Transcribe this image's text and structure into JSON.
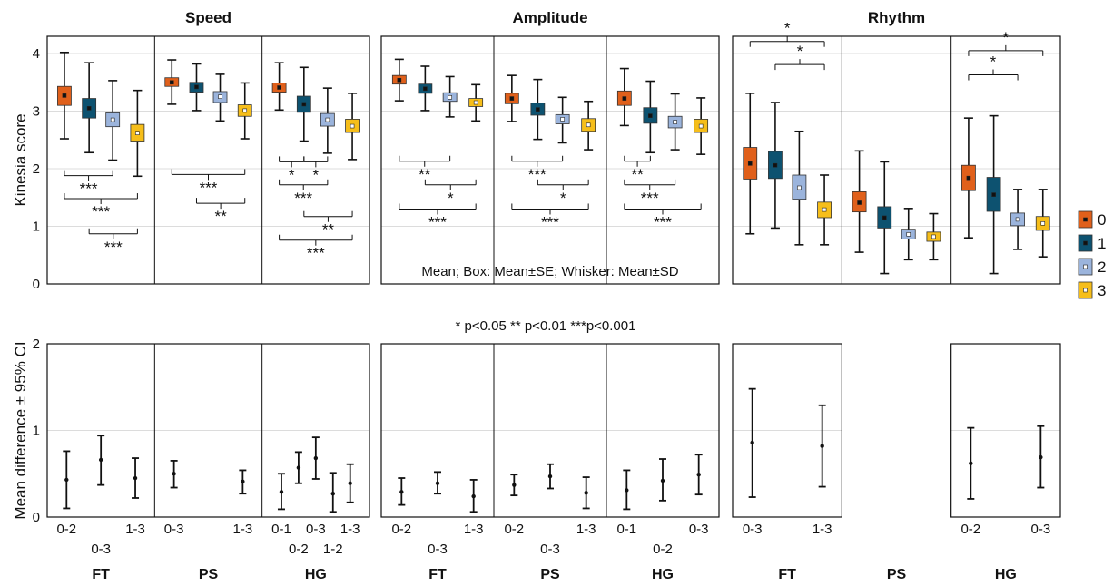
{
  "chart_data": {
    "type": "box",
    "panel_titles": [
      "Speed",
      "Amplitude",
      "Rhythm"
    ],
    "top_ylabel": "Kinesia score",
    "top_ylim": [
      0,
      4.3
    ],
    "top_yticks": [
      "0",
      "1",
      "2",
      "3",
      "4"
    ],
    "bottom_ylabel": "Mean difference ± 95% CI",
    "bottom_ylim": [
      0,
      2
    ],
    "bottom_yticks": [
      "0",
      "1",
      "2"
    ],
    "legend": [
      "0",
      "1",
      "2",
      "3"
    ],
    "colors": {
      "0": "#e0601b",
      "1": "#0d5270",
      "2": "#9bb4dc",
      "3": "#f6be1a"
    },
    "box_note": "Mean; Box: Mean±SE; Whisker: Mean±SD",
    "p_note": "* p<0.05     ** p<0.01     ***p<0.001",
    "groups": [
      {
        "title": "Speed",
        "tasks": [
          {
            "task": "FT",
            "boxes": [
              {
                "level": "0",
                "mean": 3.27,
                "se_lo": 3.1,
                "se_hi": 3.43,
                "sd_lo": 2.52,
                "sd_hi": 4.02
              },
              {
                "level": "1",
                "mean": 3.05,
                "se_lo": 2.88,
                "se_hi": 3.22,
                "sd_lo": 2.28,
                "sd_hi": 3.84
              },
              {
                "level": "2",
                "mean": 2.85,
                "se_lo": 2.73,
                "se_hi": 2.97,
                "sd_lo": 2.15,
                "sd_hi": 3.53
              },
              {
                "level": "3",
                "mean": 2.62,
                "se_lo": 2.48,
                "se_hi": 2.77,
                "sd_lo": 1.87,
                "sd_hi": 3.36
              }
            ],
            "sig": [
              {
                "a": 0,
                "b": 2,
                "y": 1.88,
                "label": "***"
              },
              {
                "a": 0,
                "b": 3,
                "y": 1.48,
                "label": "***"
              },
              {
                "a": 1,
                "b": 3,
                "y": 0.87,
                "label": "***"
              }
            ],
            "diffs": [
              {
                "label": "0-2",
                "mean": 0.43,
                "lo": 0.1,
                "hi": 0.76
              },
              {
                "label": "0-3",
                "mean": 0.66,
                "lo": 0.37,
                "hi": 0.94
              },
              {
                "label": "1-3",
                "mean": 0.45,
                "lo": 0.22,
                "hi": 0.68
              }
            ]
          },
          {
            "task": "PS",
            "boxes": [
              {
                "level": "0",
                "mean": 3.5,
                "se_lo": 3.43,
                "se_hi": 3.58,
                "sd_lo": 3.12,
                "sd_hi": 3.89
              },
              {
                "level": "1",
                "mean": 3.42,
                "se_lo": 3.33,
                "se_hi": 3.5,
                "sd_lo": 3.01,
                "sd_hi": 3.82
              },
              {
                "level": "2",
                "mean": 3.25,
                "se_lo": 3.15,
                "se_hi": 3.34,
                "sd_lo": 2.83,
                "sd_hi": 3.64
              },
              {
                "level": "3",
                "mean": 3.01,
                "se_lo": 2.91,
                "se_hi": 3.11,
                "sd_lo": 2.52,
                "sd_hi": 3.49
              }
            ],
            "sig": [
              {
                "a": 0,
                "b": 3,
                "y": 1.9,
                "label": "***"
              },
              {
                "a": 1,
                "b": 3,
                "y": 1.4,
                "label": "**"
              }
            ],
            "diffs": [
              {
                "label": "0-3",
                "mean": 0.5,
                "lo": 0.34,
                "hi": 0.65
              },
              {
                "label": "1-3",
                "mean": 0.41,
                "lo": 0.27,
                "hi": 0.54
              }
            ]
          },
          {
            "task": "HG",
            "boxes": [
              {
                "level": "0",
                "mean": 3.41,
                "se_lo": 3.33,
                "se_hi": 3.49,
                "sd_lo": 3.02,
                "sd_hi": 3.84
              },
              {
                "level": "1",
                "mean": 3.12,
                "se_lo": 2.98,
                "se_hi": 3.26,
                "sd_lo": 2.48,
                "sd_hi": 3.76
              },
              {
                "level": "2",
                "mean": 2.85,
                "se_lo": 2.74,
                "se_hi": 2.96,
                "sd_lo": 2.27,
                "sd_hi": 3.4
              },
              {
                "level": "3",
                "mean": 2.74,
                "se_lo": 2.63,
                "se_hi": 2.86,
                "sd_lo": 2.16,
                "sd_hi": 3.31
              }
            ],
            "sig": [
              {
                "a": 0,
                "b": 1,
                "y": 2.12,
                "label": "*"
              },
              {
                "a": 1,
                "b": 2,
                "y": 2.12,
                "label": "*"
              },
              {
                "a": 0,
                "b": 2,
                "y": 1.72,
                "label": "***"
              },
              {
                "a": 1,
                "b": 3,
                "y": 1.17,
                "label": "**"
              },
              {
                "a": 0,
                "b": 3,
                "y": 0.76,
                "label": "***"
              }
            ],
            "diffs": [
              {
                "label": "0-1",
                "mean": 0.29,
                "lo": 0.09,
                "hi": 0.5
              },
              {
                "label": "0-2",
                "mean": 0.57,
                "lo": 0.39,
                "hi": 0.75
              },
              {
                "label": "0-3",
                "mean": 0.68,
                "lo": 0.44,
                "hi": 0.92
              },
              {
                "label": "1-2",
                "mean": 0.27,
                "lo": 0.06,
                "hi": 0.51
              },
              {
                "label": "1-3",
                "mean": 0.39,
                "lo": 0.17,
                "hi": 0.61
              }
            ]
          }
        ]
      },
      {
        "title": "Amplitude",
        "tasks": [
          {
            "task": "FT",
            "boxes": [
              {
                "level": "0",
                "mean": 3.54,
                "se_lo": 3.47,
                "se_hi": 3.62,
                "sd_lo": 3.18,
                "sd_hi": 3.9
              },
              {
                "level": "1",
                "mean": 3.39,
                "se_lo": 3.31,
                "se_hi": 3.47,
                "sd_lo": 3.01,
                "sd_hi": 3.78
              },
              {
                "level": "2",
                "mean": 3.24,
                "se_lo": 3.17,
                "se_hi": 3.32,
                "sd_lo": 2.9,
                "sd_hi": 3.6
              },
              {
                "level": "3",
                "mean": 3.15,
                "se_lo": 3.08,
                "se_hi": 3.22,
                "sd_lo": 2.83,
                "sd_hi": 3.46
              }
            ],
            "sig": [
              {
                "a": 0,
                "b": 2,
                "y": 2.13,
                "label": "**"
              },
              {
                "a": 1,
                "b": 3,
                "y": 1.72,
                "label": "*"
              },
              {
                "a": 0,
                "b": 3,
                "y": 1.3,
                "label": "***"
              }
            ],
            "diffs": [
              {
                "label": "0-2",
                "mean": 0.29,
                "lo": 0.14,
                "hi": 0.45
              },
              {
                "label": "0-3",
                "mean": 0.39,
                "lo": 0.27,
                "hi": 0.52
              },
              {
                "label": "1-3",
                "mean": 0.24,
                "lo": 0.06,
                "hi": 0.43
              }
            ]
          },
          {
            "task": "PS",
            "boxes": [
              {
                "level": "0",
                "mean": 3.22,
                "se_lo": 3.13,
                "se_hi": 3.31,
                "sd_lo": 2.82,
                "sd_hi": 3.62
              },
              {
                "level": "1",
                "mean": 3.03,
                "se_lo": 2.93,
                "se_hi": 3.14,
                "sd_lo": 2.51,
                "sd_hi": 3.55
              },
              {
                "level": "2",
                "mean": 2.86,
                "se_lo": 2.78,
                "se_hi": 2.94,
                "sd_lo": 2.45,
                "sd_hi": 3.24
              },
              {
                "level": "3",
                "mean": 2.76,
                "se_lo": 2.65,
                "se_hi": 2.87,
                "sd_lo": 2.33,
                "sd_hi": 3.17
              }
            ],
            "sig": [
              {
                "a": 0,
                "b": 2,
                "y": 2.13,
                "label": "***"
              },
              {
                "a": 1,
                "b": 3,
                "y": 1.72,
                "label": "*"
              },
              {
                "a": 0,
                "b": 3,
                "y": 1.3,
                "label": "***"
              }
            ],
            "diffs": [
              {
                "label": "0-2",
                "mean": 0.37,
                "lo": 0.25,
                "hi": 0.49
              },
              {
                "label": "0-3",
                "mean": 0.47,
                "lo": 0.33,
                "hi": 0.61
              },
              {
                "label": "1-3",
                "mean": 0.28,
                "lo": 0.1,
                "hi": 0.46
              }
            ]
          },
          {
            "task": "HG",
            "boxes": [
              {
                "level": "0",
                "mean": 3.22,
                "se_lo": 3.1,
                "se_hi": 3.35,
                "sd_lo": 2.75,
                "sd_hi": 3.74
              },
              {
                "level": "1",
                "mean": 2.92,
                "se_lo": 2.79,
                "se_hi": 3.06,
                "sd_lo": 2.28,
                "sd_hi": 3.52
              },
              {
                "level": "2",
                "mean": 2.81,
                "se_lo": 2.71,
                "se_hi": 2.91,
                "sd_lo": 2.33,
                "sd_hi": 3.3
              },
              {
                "level": "3",
                "mean": 2.74,
                "se_lo": 2.63,
                "se_hi": 2.86,
                "sd_lo": 2.25,
                "sd_hi": 3.23
              }
            ],
            "sig": [
              {
                "a": 0,
                "b": 1,
                "y": 2.13,
                "label": "**"
              },
              {
                "a": 0,
                "b": 2,
                "y": 1.72,
                "label": "***"
              },
              {
                "a": 0,
                "b": 3,
                "y": 1.3,
                "label": "***"
              }
            ],
            "diffs": [
              {
                "label": "0-1",
                "mean": 0.31,
                "lo": 0.09,
                "hi": 0.54
              },
              {
                "label": "0-2",
                "mean": 0.42,
                "lo": 0.19,
                "hi": 0.67
              },
              {
                "label": "0-3",
                "mean": 0.49,
                "lo": 0.26,
                "hi": 0.72
              }
            ]
          }
        ]
      },
      {
        "title": "Rhythm",
        "tasks": [
          {
            "task": "FT",
            "boxes": [
              {
                "level": "0",
                "mean": 2.09,
                "se_lo": 1.82,
                "se_hi": 2.37,
                "sd_lo": 0.87,
                "sd_hi": 3.31
              },
              {
                "level": "1",
                "mean": 2.06,
                "se_lo": 1.83,
                "se_hi": 2.3,
                "sd_lo": 0.97,
                "sd_hi": 3.15
              },
              {
                "level": "2",
                "mean": 1.67,
                "se_lo": 1.47,
                "se_hi": 1.89,
                "sd_lo": 0.68,
                "sd_hi": 2.65
              },
              {
                "level": "3",
                "mean": 1.29,
                "se_lo": 1.15,
                "se_hi": 1.42,
                "sd_lo": 0.68,
                "sd_hi": 1.89
              }
            ],
            "sig": [
              {
                "a": 0,
                "b": 3,
                "y": 4.21,
                "label": "*",
                "up": true
              },
              {
                "a": 1,
                "b": 3,
                "y": 3.81,
                "label": "*",
                "up": true
              }
            ],
            "diffs": [
              {
                "label": "0-3",
                "mean": 0.86,
                "lo": 0.23,
                "hi": 1.48
              },
              {
                "label": "1-3",
                "mean": 0.82,
                "lo": 0.35,
                "hi": 1.29
              }
            ]
          },
          {
            "task": "PS",
            "boxes": [
              {
                "level": "0",
                "mean": 1.41,
                "se_lo": 1.25,
                "se_hi": 1.6,
                "sd_lo": 0.55,
                "sd_hi": 2.31
              },
              {
                "level": "1",
                "mean": 1.15,
                "se_lo": 0.97,
                "se_hi": 1.34,
                "sd_lo": 0.18,
                "sd_hi": 2.12
              },
              {
                "level": "2",
                "mean": 0.86,
                "se_lo": 0.78,
                "se_hi": 0.95,
                "sd_lo": 0.42,
                "sd_hi": 1.31
              },
              {
                "level": "3",
                "mean": 0.82,
                "se_lo": 0.74,
                "se_hi": 0.9,
                "sd_lo": 0.42,
                "sd_hi": 1.22
              }
            ],
            "sig": [],
            "diffs": []
          },
          {
            "task": "HG",
            "boxes": [
              {
                "level": "0",
                "mean": 1.84,
                "se_lo": 1.62,
                "se_hi": 2.06,
                "sd_lo": 0.8,
                "sd_hi": 2.88
              },
              {
                "level": "1",
                "mean": 1.55,
                "se_lo": 1.26,
                "se_hi": 1.85,
                "sd_lo": 0.18,
                "sd_hi": 2.92
              },
              {
                "level": "2",
                "mean": 1.12,
                "se_lo": 1.01,
                "se_hi": 1.23,
                "sd_lo": 0.6,
                "sd_hi": 1.64
              },
              {
                "level": "3",
                "mean": 1.05,
                "se_lo": 0.93,
                "se_hi": 1.17,
                "sd_lo": 0.47,
                "sd_hi": 1.64
              }
            ],
            "sig": [
              {
                "a": 0,
                "b": 3,
                "y": 4.05,
                "label": "*",
                "up": true
              },
              {
                "a": 0,
                "b": 2,
                "y": 3.63,
                "label": "*",
                "up": true
              }
            ],
            "diffs": [
              {
                "label": "0-2",
                "mean": 0.62,
                "lo": 0.21,
                "hi": 1.03
              },
              {
                "label": "0-3",
                "mean": 0.69,
                "lo": 0.34,
                "hi": 1.05
              }
            ]
          }
        ]
      }
    ]
  }
}
